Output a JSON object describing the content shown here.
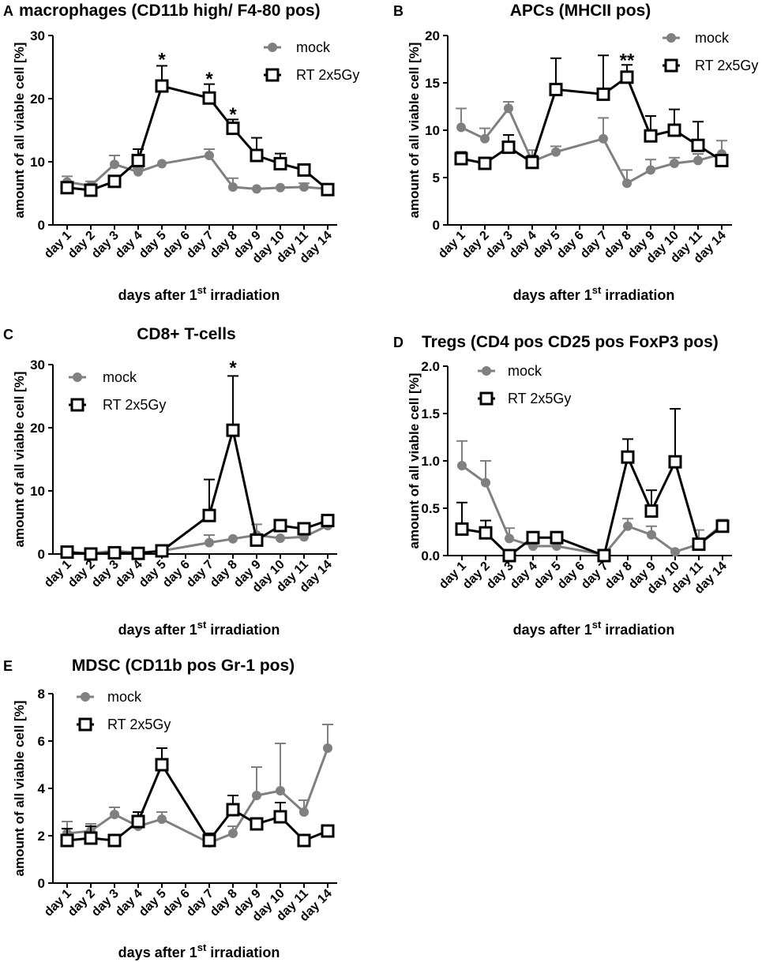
{
  "shared": {
    "xlabel_prefix": "days after 1",
    "xlabel_sup": "st",
    "xlabel_suffix": " irradiation",
    "ylabel": "amount of all viable cell [%]"
  },
  "colors": {
    "mock": "#808080",
    "rt": "#000000"
  },
  "chart_data": [
    {
      "letter": "A",
      "title": "macrophages (CD11b high/ F4-80 pos)",
      "type": "line",
      "categories": [
        "day 1",
        "day 2",
        "day 3",
        "day 4",
        "day 5",
        "day 6",
        "day 7",
        "day 8",
        "day 9",
        "day 10",
        "day 11",
        "day 14"
      ],
      "yticks": [
        "0",
        "10",
        "20",
        "30"
      ],
      "ylim": [
        0,
        30
      ],
      "legend_position": "top-right",
      "series": [
        {
          "name": "mock",
          "marker": "circle",
          "values": [
            6.8,
            6.2,
            9.6,
            8.4,
            9.7,
            null,
            11.0,
            6.0,
            5.7,
            5.9,
            6.0,
            5.7
          ],
          "err": [
            0.9,
            0.7,
            1.4,
            0.6,
            0,
            null,
            1.0,
            1.4,
            0,
            0,
            0.6,
            0
          ]
        },
        {
          "name": "RT 2x5Gy",
          "marker": "square",
          "values": [
            5.9,
            5.5,
            6.9,
            10.2,
            22.0,
            null,
            20.1,
            15.3,
            11.0,
            9.7,
            8.7,
            5.6
          ],
          "err": [
            0,
            0,
            0,
            1.8,
            3.2,
            null,
            2.2,
            1.4,
            2.8,
            1.6,
            0.9,
            0
          ]
        }
      ],
      "annotations": [
        {
          "text": "*",
          "x": "day 5",
          "y": 26.7
        },
        {
          "text": "*",
          "x": "day 7",
          "y": 23.6
        },
        {
          "text": "*",
          "x": "day 8",
          "y": 18.0
        }
      ]
    },
    {
      "letter": "B",
      "title": "APCs (MHCII pos)",
      "type": "line",
      "categories": [
        "day 1",
        "day 2",
        "day 3",
        "day 4",
        "day 5",
        "day 6",
        "day 7",
        "day 8",
        "day 9",
        "day 10",
        "day 11",
        "day 14"
      ],
      "yticks": [
        "0",
        "5",
        "10",
        "15",
        "20"
      ],
      "ylim": [
        0,
        20
      ],
      "legend_position": "top-right",
      "series": [
        {
          "name": "mock",
          "marker": "circle",
          "values": [
            10.3,
            9.1,
            12.3,
            6.7,
            7.7,
            null,
            9.1,
            4.4,
            5.8,
            6.5,
            6.8,
            7.5
          ],
          "err": [
            2.0,
            1.1,
            0.7,
            1.2,
            0.6,
            null,
            2.2,
            1.4,
            1.1,
            0.6,
            0.7,
            1.4
          ]
        },
        {
          "name": "RT 2x5Gy",
          "marker": "square",
          "values": [
            7.0,
            6.5,
            8.2,
            6.6,
            14.3,
            null,
            13.8,
            15.6,
            9.4,
            10.0,
            8.4,
            6.8
          ],
          "err": [
            0.7,
            0,
            1.3,
            0.7,
            3.3,
            null,
            4.1,
            1.3,
            2.1,
            2.2,
            2.5,
            0
          ]
        }
      ],
      "annotations": [
        {
          "text": "**",
          "x": "day 8",
          "y": 17.7
        }
      ]
    },
    {
      "letter": "C",
      "title": "CD8+ T-cells",
      "type": "line",
      "categories": [
        "day 1",
        "day 2",
        "day 3",
        "day 4",
        "day 5",
        "day 6",
        "day 7",
        "day 8",
        "day 9",
        "day 10",
        "day 11",
        "day 14"
      ],
      "yticks": [
        "0",
        "10",
        "20",
        "30"
      ],
      "ylim": [
        0,
        30
      ],
      "legend_position": "top-left",
      "series": [
        {
          "name": "mock",
          "marker": "circle",
          "values": [
            0.3,
            0.1,
            0.5,
            0.2,
            0.5,
            null,
            1.8,
            2.4,
            3.0,
            2.5,
            2.7,
            4.5
          ],
          "err": [
            0,
            0,
            0,
            0,
            0,
            null,
            1.2,
            0,
            1.7,
            0,
            0,
            0.8
          ]
        },
        {
          "name": "RT 2x5Gy",
          "marker": "square",
          "values": [
            0.3,
            0.0,
            0.2,
            0.1,
            0.5,
            null,
            6.1,
            19.6,
            2.2,
            4.5,
            4.0,
            5.3
          ],
          "err": [
            0,
            0,
            0,
            0,
            0,
            null,
            5.7,
            8.6,
            0,
            0.8,
            0,
            0.6
          ]
        }
      ],
      "annotations": [
        {
          "text": "*",
          "x": "day 8",
          "y": 30.0
        }
      ]
    },
    {
      "letter": "D",
      "title": "Tregs (CD4 pos CD25 pos FoxP3 pos)",
      "type": "line",
      "categories": [
        "day 1",
        "day 2",
        "day 3",
        "day 4",
        "day 5",
        "day 6",
        "day 7",
        "day 8",
        "day 9",
        "day 10",
        "day 11",
        "day 14"
      ],
      "yticks": [
        "0.0",
        "0.5",
        "1.0",
        "1.5",
        "2.0"
      ],
      "ylim": [
        0,
        2
      ],
      "legend_position": "top-left",
      "series": [
        {
          "name": "mock",
          "marker": "circle",
          "values": [
            0.95,
            0.77,
            0.18,
            0.1,
            0.1,
            null,
            0.01,
            0.31,
            0.22,
            0.04,
            0.12,
            0.33
          ],
          "err": [
            0.26,
            0.23,
            0.11,
            0.07,
            0,
            null,
            0,
            0.08,
            0.09,
            0,
            0.15,
            0.05
          ]
        },
        {
          "name": "RT 2x5Gy",
          "marker": "square",
          "values": [
            0.28,
            0.24,
            0.0,
            0.19,
            0.19,
            null,
            0.0,
            1.04,
            0.47,
            0.99,
            0.12,
            0.31
          ],
          "err": [
            0.28,
            0.13,
            0,
            0.06,
            0,
            null,
            0,
            0.19,
            0.22,
            0.56,
            0,
            0
          ]
        }
      ],
      "annotations": []
    },
    {
      "letter": "E",
      "title": "MDSC (CD11b pos Gr-1 pos)",
      "type": "line",
      "categories": [
        "day 1",
        "day 2",
        "day 3",
        "day 4",
        "day 5",
        "day 6",
        "day 7",
        "day 8",
        "day 9",
        "day 10",
        "day 11",
        "day 14"
      ],
      "yticks": [
        "0",
        "2",
        "4",
        "6",
        "8"
      ],
      "ylim": [
        0,
        8
      ],
      "legend_position": "top-left",
      "series": [
        {
          "name": "mock",
          "marker": "circle",
          "values": [
            2.1,
            2.2,
            2.9,
            2.4,
            2.7,
            null,
            1.7,
            2.1,
            3.7,
            3.9,
            3.0,
            5.7
          ],
          "err": [
            0.5,
            0.3,
            0.3,
            0.3,
            0.3,
            null,
            0,
            0.3,
            1.2,
            2.0,
            0.5,
            1.0
          ]
        },
        {
          "name": "RT 2x5Gy",
          "marker": "square",
          "values": [
            1.8,
            1.9,
            1.8,
            2.6,
            5.0,
            null,
            1.8,
            3.1,
            2.5,
            2.8,
            1.8,
            2.2
          ],
          "err": [
            0.5,
            0.5,
            0,
            0.4,
            0.7,
            null,
            0.3,
            0.6,
            0,
            0.6,
            0,
            0
          ]
        }
      ],
      "annotations": []
    }
  ]
}
